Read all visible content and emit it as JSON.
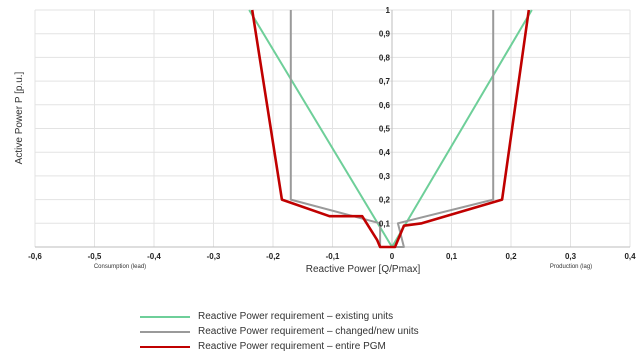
{
  "chart_data": {
    "type": "line",
    "xlabel": "Reactive Power [Q/Pmax]",
    "ylabel": "Active Power P [p.u.]",
    "x_left_note": "Consumption (lead)",
    "x_right_note": "Production (lag)",
    "xlim": [
      -0.6,
      0.4
    ],
    "ylim": [
      0,
      1
    ],
    "x_ticks": [
      -0.6,
      -0.5,
      -0.4,
      -0.3,
      -0.2,
      -0.1,
      0,
      0.1,
      0.2,
      0.3,
      0.4
    ],
    "x_tick_labels": [
      "-0,6",
      "-0,5",
      "-0,4",
      "-0,3",
      "-0,2",
      "-0,1",
      "0",
      "0,1",
      "0,2",
      "0,3",
      "0,4"
    ],
    "y_ticks": [
      0.1,
      0.2,
      0.3,
      0.4,
      0.5,
      0.6,
      0.7,
      0.8,
      0.9,
      1
    ],
    "y_tick_labels": [
      "0,1",
      "0,2",
      "0,3",
      "0,4",
      "0,5",
      "0,6",
      "0,7",
      "0,8",
      "0,9",
      "1"
    ],
    "grid": true,
    "legend_position": "bottom",
    "series": [
      {
        "name": "Reactive Power requirement – existing units",
        "color": "#6ecf99",
        "points": [
          [
            -0.24,
            1.0
          ],
          [
            0.0,
            0.0
          ],
          [
            0.235,
            1.0
          ]
        ]
      },
      {
        "name": "Reactive Power requirement – changed/new units",
        "color": "#9a9a9a",
        "points": [
          [
            -0.17,
            1.0
          ],
          [
            -0.17,
            0.2
          ],
          [
            -0.02,
            0.1
          ],
          [
            -0.02,
            0.0
          ],
          [
            0.02,
            0.0
          ],
          [
            0.01,
            0.1
          ],
          [
            0.17,
            0.2
          ],
          [
            0.17,
            1.0
          ]
        ]
      },
      {
        "name": "Reactive Power requirement – entire PGM",
        "color": "#c00000",
        "points": [
          [
            -0.235,
            1.0
          ],
          [
            -0.185,
            0.2
          ],
          [
            -0.105,
            0.13
          ],
          [
            -0.05,
            0.13
          ],
          [
            -0.025,
            0.03
          ],
          [
            -0.02,
            0.0
          ],
          [
            0.005,
            0.0
          ],
          [
            0.02,
            0.09
          ],
          [
            0.05,
            0.1
          ],
          [
            0.185,
            0.2
          ],
          [
            0.23,
            1.0
          ]
        ]
      }
    ]
  }
}
